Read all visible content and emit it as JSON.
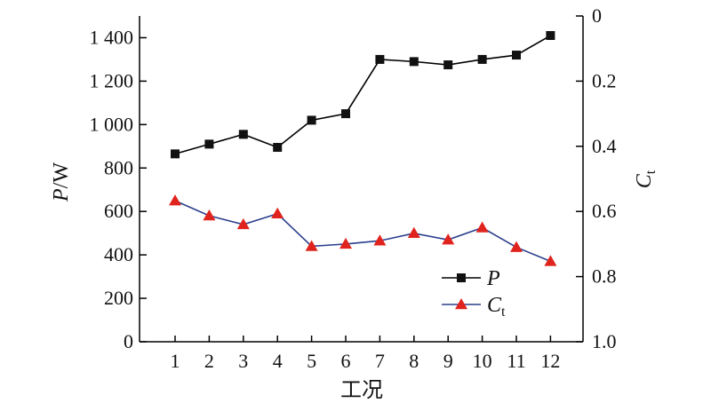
{
  "chart_data": {
    "type": "line",
    "xlabel": "工况",
    "x": [
      "1",
      "2",
      "3",
      "4",
      "5",
      "6",
      "7",
      "8",
      "9",
      "10",
      "11",
      "12"
    ],
    "y_left": {
      "label_italic": "P",
      "label_rest": "/W",
      "lim": [
        0,
        1500
      ],
      "ticks": [
        0,
        200,
        400,
        600,
        800,
        1000,
        1200,
        1400
      ],
      "tick_labels": [
        "0",
        "200",
        "400",
        "600",
        "800",
        "1 000",
        "1 200",
        "1 400"
      ]
    },
    "y_right": {
      "label_main": "C",
      "label_sub": "t",
      "lim": [
        0,
        1.0
      ],
      "inverted": true,
      "ticks": [
        0,
        0.2,
        0.4,
        0.6,
        0.8,
        1.0
      ],
      "tick_labels": [
        "0",
        "0.2",
        "0.4",
        "0.6",
        "0.8",
        "1.0"
      ]
    },
    "series": [
      {
        "name_main": "P",
        "name_sub": "",
        "axis": "left",
        "marker": "square",
        "color": "#000000",
        "marker_color": "#111111",
        "values": [
          865,
          910,
          955,
          895,
          1020,
          1050,
          1300,
          1290,
          1275,
          1300,
          1320,
          1410
        ]
      },
      {
        "name_main": "C",
        "name_sub": "t",
        "axis": "right",
        "marker": "triangle",
        "color": "#2b3f8c",
        "marker_color": "#e0231c",
        "values": [
          0.567,
          0.613,
          0.64,
          0.607,
          0.707,
          0.7,
          0.69,
          0.667,
          0.687,
          0.65,
          0.71,
          0.753
        ]
      }
    ],
    "legend": "lower-right",
    "grid": false
  }
}
